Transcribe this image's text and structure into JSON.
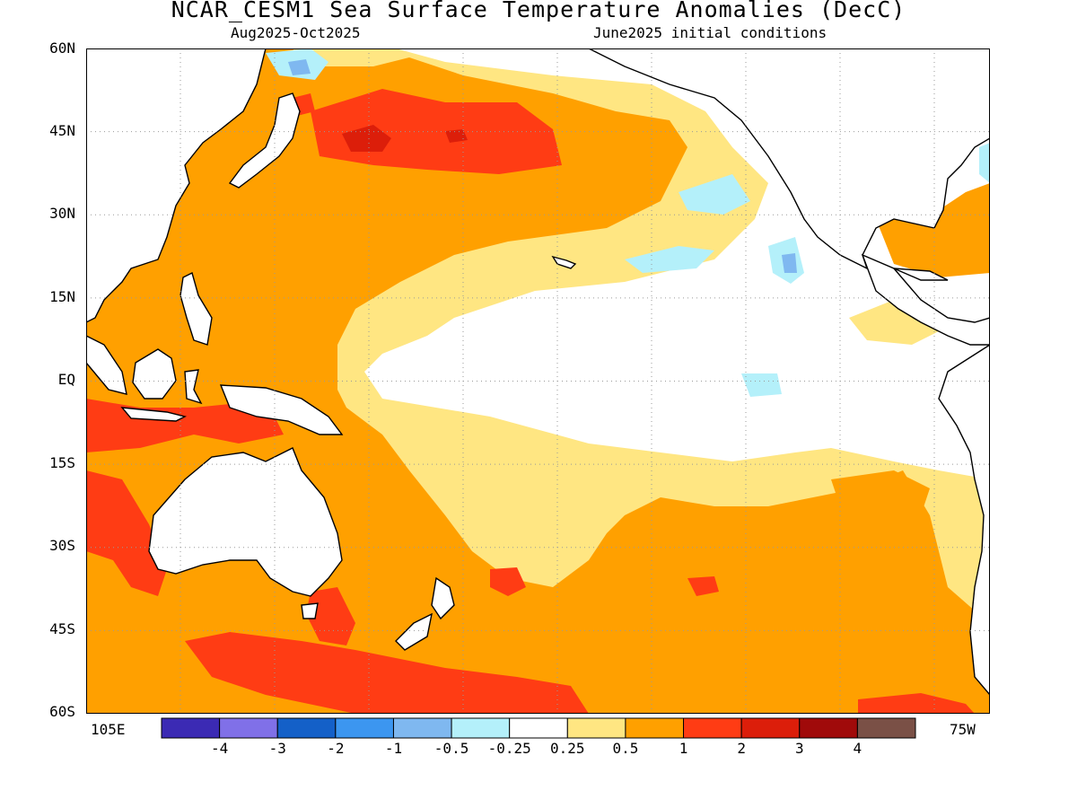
{
  "title": "NCAR_CESM1 Sea Surface Temperature Anomalies (DecC)",
  "subtitle_left": "Aug2025-Oct2025",
  "subtitle_right": "June2025 initial conditions",
  "lat_labels": [
    "60N",
    "45N",
    "30N",
    "15N",
    "EQ",
    "15S",
    "30S",
    "45S",
    "60S"
  ],
  "lon_label_left": "105E",
  "lon_label_right": "75W",
  "colorbar": {
    "colors": [
      "#3b2ab4",
      "#8070e8",
      "#1460c8",
      "#3c96f0",
      "#7fb8f0",
      "#b4f0fa",
      "#ffffff",
      "#ffe682",
      "#ffa000",
      "#ff3c14",
      "#dc1e0a",
      "#a00a0a",
      "#7a5046"
    ],
    "labels": [
      "-4",
      "-3",
      "-2",
      "-1",
      "-0.5",
      "-0.25",
      "0.25",
      "0.5",
      "1",
      "2",
      "3",
      "4"
    ]
  },
  "colors": {
    "land": "#ffffff",
    "coast": "#000000",
    "anom_025_05": "#ffe682",
    "anom_05_1": "#ffa000",
    "anom_1_2": "#ff3c14",
    "anom_2_3": "#dc1e0a",
    "anom_neg_025_05": "#b4f0fa",
    "anom_neg_05_1": "#7fb8f0"
  }
}
